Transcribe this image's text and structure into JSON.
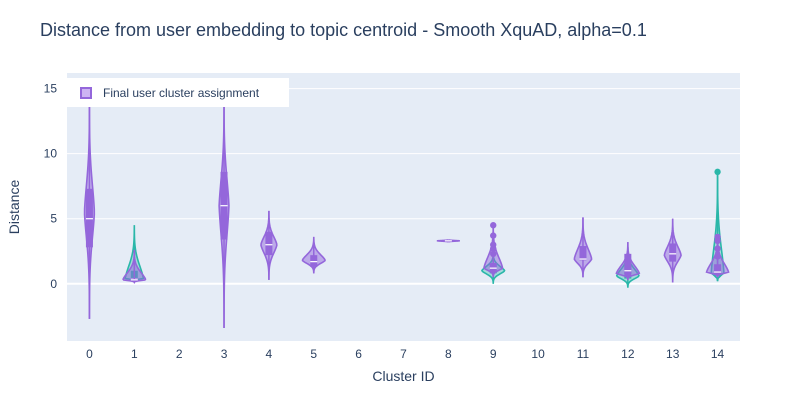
{
  "chart_data": {
    "type": "violin",
    "title": "Distance from user embedding to topic centroid - Smooth XquAD, alpha=0.1",
    "xlabel": "Cluster ID",
    "ylabel": "Distance",
    "x_ticks": [
      "0",
      "1",
      "2",
      "3",
      "4",
      "5",
      "6",
      "7",
      "8",
      "9",
      "10",
      "11",
      "12",
      "13",
      "14"
    ],
    "y_ticks": [
      0,
      5,
      10,
      15
    ],
    "ylim": [
      -4.4,
      16.2
    ],
    "grid": true,
    "legend": {
      "placement": "top-left",
      "entries": [
        "Final user cluster assignment"
      ]
    },
    "colors": {
      "final_assignment": "#9467db",
      "final_assignment_fill": "#cdb4f3",
      "other": "#2ab7a9",
      "plot_background": "#e5ecf6",
      "text": "#2a3f5f"
    },
    "series": [
      {
        "name": "Final user cluster assignment",
        "violins": [
          {
            "cluster": "0",
            "min": -2.7,
            "q1": 2.8,
            "median": 5.0,
            "q3": 7.3,
            "max": 14.2,
            "peak": 5.5
          },
          {
            "cluster": "1",
            "min": 0.1,
            "q1": 0.2,
            "median": 0.3,
            "q3": 0.4,
            "max": 2.6,
            "peak": 0.3
          },
          {
            "cluster": "3",
            "min": -3.4,
            "q1": 3.4,
            "median": 6.0,
            "q3": 8.6,
            "max": 14.5,
            "peak": 6.0
          },
          {
            "cluster": "4",
            "min": 0.3,
            "q1": 2.2,
            "median": 3.0,
            "q3": 4.0,
            "max": 5.6,
            "peak": 3.0
          },
          {
            "cluster": "5",
            "min": 0.8,
            "q1": 1.3,
            "median": 1.7,
            "q3": 2.2,
            "max": 3.6,
            "peak": 1.8
          },
          {
            "cluster": "8",
            "min": 3.2,
            "q1": 3.25,
            "median": 3.3,
            "q3": 3.35,
            "max": 3.4,
            "peak": 3.3
          },
          {
            "cluster": "9",
            "min": 0.5,
            "q1": 0.9,
            "median": 1.2,
            "q3": 1.6,
            "max": 4.6,
            "peak": 1.2
          },
          {
            "cluster": "11",
            "min": 0.5,
            "q1": 1.8,
            "median": 1.9,
            "q3": 2.9,
            "max": 5.1,
            "peak": 1.9
          },
          {
            "cluster": "12",
            "min": 0.3,
            "q1": 0.6,
            "median": 1.0,
            "q3": 2.3,
            "max": 3.2,
            "peak": 0.8
          },
          {
            "cluster": "13",
            "min": 0.1,
            "q1": 1.7,
            "median": 2.3,
            "q3": 3.1,
            "max": 5.0,
            "peak": 2.2
          },
          {
            "cluster": "14",
            "min": 0.5,
            "q1": 0.7,
            "median": 0.9,
            "q3": 1.5,
            "max": 3.7,
            "peak": 0.9
          }
        ]
      },
      {
        "name": "",
        "violins": [
          {
            "cluster": "1",
            "min": 0.2,
            "q1": 0.3,
            "median": 0.4,
            "q3": 1.0,
            "max": 4.5,
            "peak": 0.4
          },
          {
            "cluster": "9",
            "min": 0.0,
            "q1": 0.8,
            "median": 1.1,
            "q3": 1.5,
            "max": 2.4,
            "peak": 1.0
          },
          {
            "cluster": "12",
            "min": -0.3,
            "q1": 0.4,
            "median": 0.7,
            "q3": 1.4,
            "max": 2.8,
            "peak": 0.6
          },
          {
            "cluster": "14",
            "min": 0.2,
            "q1": 0.6,
            "median": 0.8,
            "q3": 1.2,
            "max": 8.7,
            "peak": 0.8
          }
        ]
      }
    ]
  }
}
